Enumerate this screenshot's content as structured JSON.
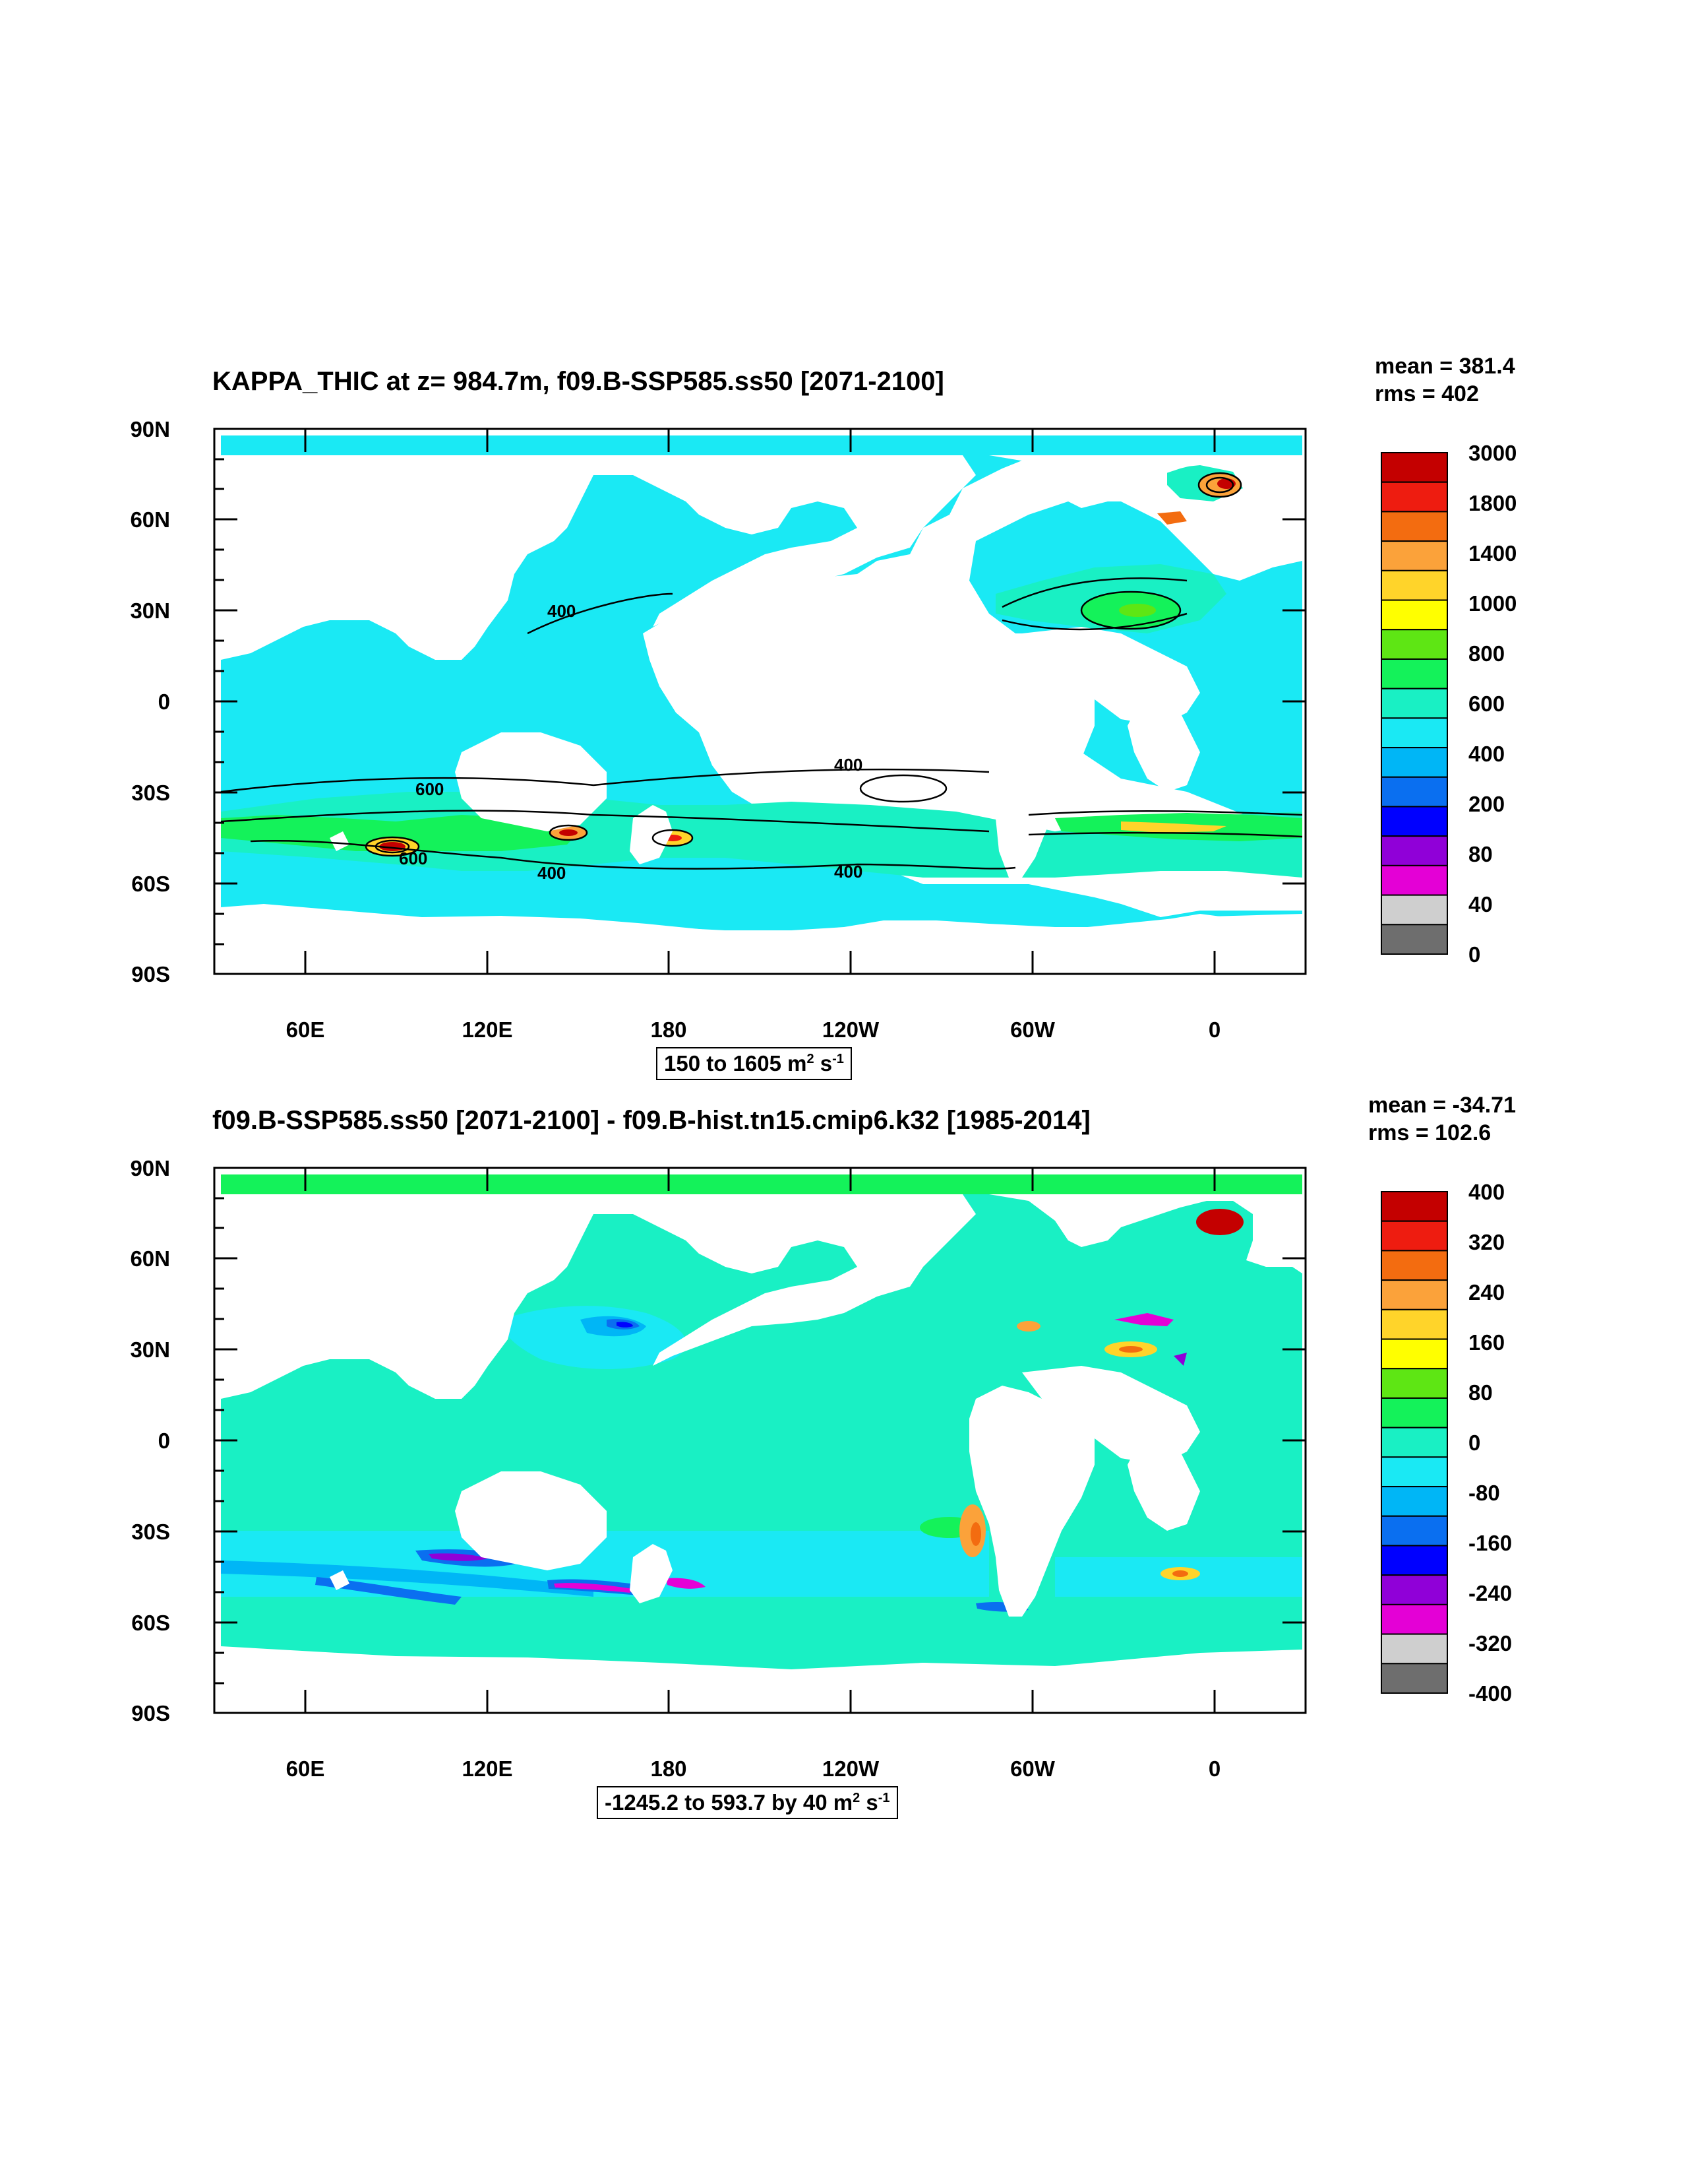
{
  "panels": [
    {
      "title": "KAPPA_THIC at z= 984.7m, f09.B-SSP585.ss50 [2071-2100]",
      "stats": {
        "mean": "mean = 381.4",
        "rms": "rms = 402"
      },
      "range_text": "150 to 1605 m",
      "range_unit_parts": {
        "exp1": "2",
        "mid": " s",
        "exp2": "-1"
      },
      "lat_labels": [
        "90N",
        "60N",
        "30N",
        "0",
        "30S",
        "60S",
        "90S"
      ],
      "lon_labels": [
        "60E",
        "120E",
        "180",
        "120W",
        "60W",
        "0"
      ],
      "colorbar_labels": [
        "3000",
        "1800",
        "1400",
        "1000",
        "800",
        "600",
        "400",
        "200",
        "80",
        "40",
        "0"
      ],
      "colorbar_colors": [
        "#c40000",
        "#ee1c10",
        "#f36c10",
        "#fba23a",
        "#ffd42a",
        "#ffff00",
        "#5ee614",
        "#14f25a",
        "#19f0c4",
        "#1ae9f4",
        "#00b6f6",
        "#0a6ff0",
        "#0000ff",
        "#9000d8",
        "#e400d6",
        "#cfcfcf",
        "#6e6e6e"
      ],
      "contour_labels": [
        "400",
        "400",
        "600",
        "600",
        "400",
        "400"
      ]
    },
    {
      "title": "f09.B-SSP585.ss50 [2071-2100] - f09.B-hist.tn15.cmip6.k32 [1985-2014]",
      "stats": {
        "mean": "mean = -34.71",
        "rms": "rms = 102.6"
      },
      "range_text": "-1245.2 to 593.7 by 40 m",
      "range_unit_parts": {
        "exp1": "2",
        "mid": " s",
        "exp2": "-1"
      },
      "lat_labels": [
        "90N",
        "60N",
        "30N",
        "0",
        "30S",
        "60S",
        "90S"
      ],
      "lon_labels": [
        "60E",
        "120E",
        "180",
        "120W",
        "60W",
        "0"
      ],
      "colorbar_labels": [
        "400",
        "320",
        "240",
        "160",
        "80",
        "0",
        "-80",
        "-160",
        "-240",
        "-320",
        "-400"
      ],
      "colorbar_colors": [
        "#c40000",
        "#ee1c10",
        "#f36c10",
        "#fba23a",
        "#ffd42a",
        "#ffff00",
        "#5ee614",
        "#14f25a",
        "#19f0c4",
        "#1ae9f4",
        "#00b6f6",
        "#0a6ff0",
        "#0000ff",
        "#9000d8",
        "#e400d6",
        "#cfcfcf",
        "#6e6e6e"
      ]
    }
  ]
}
